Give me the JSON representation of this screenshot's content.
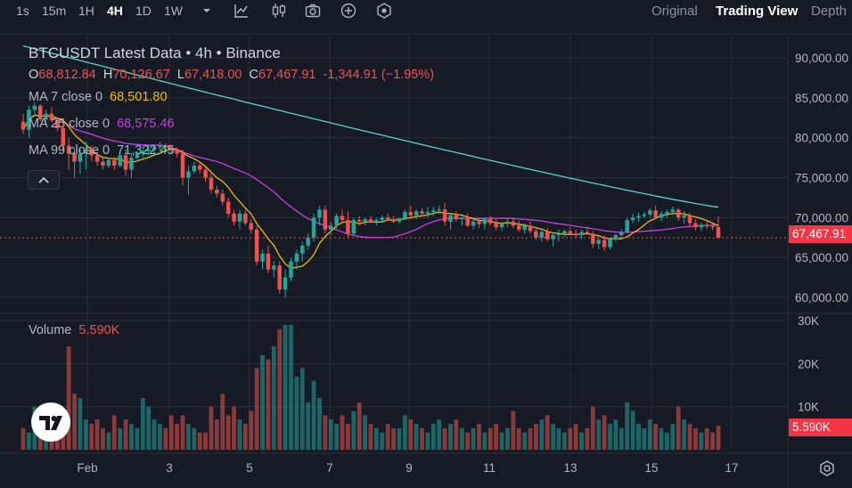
{
  "toolbar": {
    "intervals": [
      {
        "label": "1s",
        "active": false
      },
      {
        "label": "15m",
        "active": false
      },
      {
        "label": "1H",
        "active": false
      },
      {
        "label": "4H",
        "active": true
      },
      {
        "label": "1D",
        "active": false
      },
      {
        "label": "1W",
        "active": false
      }
    ],
    "views": [
      {
        "label": "Original",
        "active": false
      },
      {
        "label": "Trading View",
        "active": true
      },
      {
        "label": "Depth",
        "active": false
      }
    ]
  },
  "legend": {
    "title": "BTCUSDT Latest Data • 4h • Binance",
    "ohlc": {
      "o_label": "O",
      "o_value": "68,812.84",
      "h_label": "H",
      "h_value": "70,126.67",
      "l_label": "L",
      "l_value": "67,418.00",
      "c_label": "C",
      "c_value": "67,467.91",
      "change": "-1,344.91 (−1.95%)"
    },
    "ma": [
      {
        "label": "MA 7 close 0",
        "value": "68,501.80",
        "color": "#f0b90b"
      },
      {
        "label": "MA 25 close 0",
        "value": "68,575.46",
        "color": "#c940e0"
      },
      {
        "label": "MA 99 close 0",
        "value": "71,322.45",
        "color": "#5ed3c6"
      }
    ],
    "volume_label": "Volume",
    "volume_value": "5.590K"
  },
  "price_axis": [
    "90,000.00",
    "85,000.00",
    "80,000.00",
    "75,000.00",
    "70,000.00",
    "65,000.00",
    "60,000.00"
  ],
  "current_price_tag": "67,467.91",
  "volume_axis": [
    "30K",
    "20K",
    "10K"
  ],
  "current_volume_tag": "5.590K",
  "time_axis": [
    "Feb",
    "3",
    "5",
    "7",
    "9",
    "11",
    "13",
    "15",
    "17"
  ],
  "colors": {
    "up": "#26a69a",
    "down": "#ef5350",
    "bg": "#161a25",
    "grid": "#2a2e39"
  },
  "chart_data": {
    "type": "candlestick",
    "title": "BTCUSDT Latest Data • 4h • Binance",
    "interval": "4h",
    "ylim": [
      58000,
      93000
    ],
    "volume_ylim": [
      0,
      30000
    ],
    "x_ticks": [
      "Feb",
      "3",
      "5",
      "7",
      "9",
      "11",
      "13",
      "15",
      "17"
    ],
    "candles": [
      {
        "o": 82000,
        "h": 83000,
        "l": 80500,
        "c": 81000,
        "v": 5000
      },
      {
        "o": 81000,
        "h": 84000,
        "l": 80000,
        "c": 83500,
        "v": 4000
      },
      {
        "o": 83500,
        "h": 84500,
        "l": 83000,
        "c": 84000,
        "v": 10000
      },
      {
        "o": 84000,
        "h": 84200,
        "l": 82000,
        "c": 82300,
        "v": 6000
      },
      {
        "o": 82300,
        "h": 83500,
        "l": 81500,
        "c": 83000,
        "v": 8000
      },
      {
        "o": 83000,
        "h": 83800,
        "l": 82000,
        "c": 82200,
        "v": 5000
      },
      {
        "o": 82200,
        "h": 82500,
        "l": 80800,
        "c": 81200,
        "v": 3000
      },
      {
        "o": 81200,
        "h": 81500,
        "l": 78500,
        "c": 79000,
        "v": 9000
      },
      {
        "o": 79000,
        "h": 80000,
        "l": 76000,
        "c": 78000,
        "v": 24000
      },
      {
        "o": 78000,
        "h": 78500,
        "l": 75000,
        "c": 77000,
        "v": 13000
      },
      {
        "o": 77000,
        "h": 78500,
        "l": 75500,
        "c": 78000,
        "v": 12000
      },
      {
        "o": 78000,
        "h": 79500,
        "l": 76000,
        "c": 78500,
        "v": 7000
      },
      {
        "o": 78500,
        "h": 79000,
        "l": 77000,
        "c": 77800,
        "v": 6000
      },
      {
        "o": 77800,
        "h": 78000,
        "l": 76500,
        "c": 77000,
        "v": 7000
      },
      {
        "o": 77000,
        "h": 77500,
        "l": 76000,
        "c": 76500,
        "v": 5000
      },
      {
        "o": 76500,
        "h": 77500,
        "l": 76200,
        "c": 77200,
        "v": 4000
      },
      {
        "o": 77200,
        "h": 77600,
        "l": 76000,
        "c": 76500,
        "v": 8000
      },
      {
        "o": 76500,
        "h": 78000,
        "l": 76300,
        "c": 77800,
        "v": 5000
      },
      {
        "o": 77800,
        "h": 78500,
        "l": 75200,
        "c": 76000,
        "v": 7000
      },
      {
        "o": 76000,
        "h": 78000,
        "l": 75000,
        "c": 77500,
        "v": 6000
      },
      {
        "o": 77500,
        "h": 78200,
        "l": 77000,
        "c": 78000,
        "v": 5000
      },
      {
        "o": 78000,
        "h": 78800,
        "l": 77500,
        "c": 78300,
        "v": 12000
      },
      {
        "o": 78300,
        "h": 79000,
        "l": 77800,
        "c": 78500,
        "v": 10000
      },
      {
        "o": 78500,
        "h": 79200,
        "l": 78000,
        "c": 78800,
        "v": 7000
      },
      {
        "o": 78800,
        "h": 79500,
        "l": 78300,
        "c": 79000,
        "v": 6000
      },
      {
        "o": 79000,
        "h": 79300,
        "l": 78500,
        "c": 78800,
        "v": 5000
      },
      {
        "o": 78800,
        "h": 79000,
        "l": 78000,
        "c": 78500,
        "v": 8000
      },
      {
        "o": 78500,
        "h": 78800,
        "l": 77500,
        "c": 78000,
        "v": 6000
      },
      {
        "o": 78000,
        "h": 78500,
        "l": 74000,
        "c": 75000,
        "v": 8000
      },
      {
        "o": 75000,
        "h": 76500,
        "l": 72800,
        "c": 75800,
        "v": 6000
      },
      {
        "o": 75800,
        "h": 77000,
        "l": 75500,
        "c": 76500,
        "v": 5000
      },
      {
        "o": 76500,
        "h": 77000,
        "l": 75500,
        "c": 76000,
        "v": 4000
      },
      {
        "o": 76000,
        "h": 76300,
        "l": 74500,
        "c": 75000,
        "v": 4000
      },
      {
        "o": 75000,
        "h": 75500,
        "l": 73000,
        "c": 73500,
        "v": 10000
      },
      {
        "o": 73500,
        "h": 74000,
        "l": 72500,
        "c": 73000,
        "v": 7000
      },
      {
        "o": 73000,
        "h": 73500,
        "l": 71500,
        "c": 72000,
        "v": 13000
      },
      {
        "o": 72000,
        "h": 72500,
        "l": 70000,
        "c": 70500,
        "v": 8000
      },
      {
        "o": 70500,
        "h": 71000,
        "l": 69000,
        "c": 69500,
        "v": 10000
      },
      {
        "o": 69500,
        "h": 71000,
        "l": 68500,
        "c": 70500,
        "v": 7000
      },
      {
        "o": 70500,
        "h": 71000,
        "l": 69000,
        "c": 69300,
        "v": 6000
      },
      {
        "o": 69300,
        "h": 69800,
        "l": 68000,
        "c": 68500,
        "v": 9000
      },
      {
        "o": 68500,
        "h": 69000,
        "l": 64000,
        "c": 64500,
        "v": 19000
      },
      {
        "o": 64500,
        "h": 66000,
        "l": 63500,
        "c": 65500,
        "v": 22000
      },
      {
        "o": 65500,
        "h": 66500,
        "l": 63000,
        "c": 63500,
        "v": 21000
      },
      {
        "o": 63500,
        "h": 64500,
        "l": 62500,
        "c": 64000,
        "v": 24000
      },
      {
        "o": 64000,
        "h": 64500,
        "l": 60500,
        "c": 61000,
        "v": 28000
      },
      {
        "o": 61000,
        "h": 63500,
        "l": 60000,
        "c": 62500,
        "v": 29000
      },
      {
        "o": 62500,
        "h": 65000,
        "l": 62000,
        "c": 64500,
        "v": 29000
      },
      {
        "o": 64500,
        "h": 66000,
        "l": 63500,
        "c": 65500,
        "v": 17000
      },
      {
        "o": 65500,
        "h": 67000,
        "l": 64500,
        "c": 66500,
        "v": 19000
      },
      {
        "o": 66500,
        "h": 68000,
        "l": 66000,
        "c": 67500,
        "v": 11000
      },
      {
        "o": 67500,
        "h": 70500,
        "l": 67000,
        "c": 70000,
        "v": 16000
      },
      {
        "o": 70000,
        "h": 71500,
        "l": 69000,
        "c": 71000,
        "v": 12000
      },
      {
        "o": 71000,
        "h": 71500,
        "l": 68000,
        "c": 68500,
        "v": 8000
      },
      {
        "o": 68500,
        "h": 69500,
        "l": 67800,
        "c": 69000,
        "v": 7000
      },
      {
        "o": 69000,
        "h": 70500,
        "l": 68500,
        "c": 70200,
        "v": 6000
      },
      {
        "o": 70200,
        "h": 71000,
        "l": 69200,
        "c": 69700,
        "v": 8000
      },
      {
        "o": 69700,
        "h": 70800,
        "l": 67500,
        "c": 68000,
        "v": 6000
      },
      {
        "o": 68000,
        "h": 70000,
        "l": 67700,
        "c": 69700,
        "v": 9000
      },
      {
        "o": 69700,
        "h": 70200,
        "l": 69000,
        "c": 69500,
        "v": 11000
      },
      {
        "o": 69500,
        "h": 70000,
        "l": 69000,
        "c": 69800,
        "v": 8000
      },
      {
        "o": 69800,
        "h": 70200,
        "l": 69300,
        "c": 69500,
        "v": 6000
      },
      {
        "o": 69500,
        "h": 70000,
        "l": 69000,
        "c": 69700,
        "v": 5000
      },
      {
        "o": 69700,
        "h": 70300,
        "l": 69500,
        "c": 70000,
        "v": 4000
      },
      {
        "o": 70000,
        "h": 70500,
        "l": 69600,
        "c": 69800,
        "v": 6000
      },
      {
        "o": 69800,
        "h": 70200,
        "l": 69300,
        "c": 69500,
        "v": 5000
      },
      {
        "o": 69500,
        "h": 70000,
        "l": 69200,
        "c": 69900,
        "v": 5000
      },
      {
        "o": 69900,
        "h": 71000,
        "l": 69700,
        "c": 70700,
        "v": 8000
      },
      {
        "o": 70700,
        "h": 71500,
        "l": 70000,
        "c": 70300,
        "v": 7000
      },
      {
        "o": 70300,
        "h": 71000,
        "l": 69800,
        "c": 70800,
        "v": 6000
      },
      {
        "o": 70800,
        "h": 71200,
        "l": 70200,
        "c": 70500,
        "v": 5000
      },
      {
        "o": 70500,
        "h": 71300,
        "l": 70000,
        "c": 70700,
        "v": 4000
      },
      {
        "o": 70700,
        "h": 71400,
        "l": 70200,
        "c": 70900,
        "v": 6000
      },
      {
        "o": 70900,
        "h": 71500,
        "l": 70400,
        "c": 71000,
        "v": 7000
      },
      {
        "o": 71000,
        "h": 71800,
        "l": 69000,
        "c": 69500,
        "v": 5000
      },
      {
        "o": 69500,
        "h": 70500,
        "l": 68500,
        "c": 70300,
        "v": 6000
      },
      {
        "o": 70300,
        "h": 70800,
        "l": 69500,
        "c": 69800,
        "v": 7000
      },
      {
        "o": 69800,
        "h": 70300,
        "l": 69000,
        "c": 70000,
        "v": 5000
      },
      {
        "o": 70000,
        "h": 70500,
        "l": 68800,
        "c": 69000,
        "v": 4000
      },
      {
        "o": 69000,
        "h": 69800,
        "l": 68500,
        "c": 69500,
        "v": 5000
      },
      {
        "o": 69500,
        "h": 70000,
        "l": 68700,
        "c": 69200,
        "v": 6000
      },
      {
        "o": 69200,
        "h": 70000,
        "l": 68500,
        "c": 69800,
        "v": 4000
      },
      {
        "o": 69800,
        "h": 70200,
        "l": 69000,
        "c": 69300,
        "v": 5000
      },
      {
        "o": 69300,
        "h": 69800,
        "l": 68400,
        "c": 68800,
        "v": 6000
      },
      {
        "o": 68800,
        "h": 69500,
        "l": 68300,
        "c": 69300,
        "v": 4000
      },
      {
        "o": 69300,
        "h": 69800,
        "l": 68800,
        "c": 69500,
        "v": 5000
      },
      {
        "o": 69500,
        "h": 70000,
        "l": 68700,
        "c": 69000,
        "v": 9000
      },
      {
        "o": 69000,
        "h": 69600,
        "l": 68200,
        "c": 68500,
        "v": 5000
      },
      {
        "o": 68500,
        "h": 69300,
        "l": 68000,
        "c": 69000,
        "v": 4000
      },
      {
        "o": 69000,
        "h": 69500,
        "l": 68000,
        "c": 68300,
        "v": 5000
      },
      {
        "o": 68300,
        "h": 68800,
        "l": 67200,
        "c": 67500,
        "v": 6000
      },
      {
        "o": 67500,
        "h": 68500,
        "l": 67000,
        "c": 68200,
        "v": 7000
      },
      {
        "o": 68200,
        "h": 68700,
        "l": 67000,
        "c": 67300,
        "v": 8000
      },
      {
        "o": 67300,
        "h": 68000,
        "l": 66400,
        "c": 67800,
        "v": 6000
      },
      {
        "o": 67800,
        "h": 68500,
        "l": 67000,
        "c": 68000,
        "v": 5000
      },
      {
        "o": 68000,
        "h": 68500,
        "l": 67600,
        "c": 68300,
        "v": 4000
      },
      {
        "o": 68300,
        "h": 68800,
        "l": 67800,
        "c": 68000,
        "v": 5000
      },
      {
        "o": 68000,
        "h": 68500,
        "l": 67500,
        "c": 67800,
        "v": 6000
      },
      {
        "o": 67800,
        "h": 68500,
        "l": 67300,
        "c": 68200,
        "v": 4000
      },
      {
        "o": 68200,
        "h": 68700,
        "l": 67800,
        "c": 68000,
        "v": 5000
      },
      {
        "o": 68000,
        "h": 68300,
        "l": 66200,
        "c": 66700,
        "v": 10000
      },
      {
        "o": 66700,
        "h": 67500,
        "l": 66000,
        "c": 67200,
        "v": 7000
      },
      {
        "o": 67200,
        "h": 67800,
        "l": 65800,
        "c": 66300,
        "v": 8000
      },
      {
        "o": 66300,
        "h": 67500,
        "l": 66000,
        "c": 67300,
        "v": 6000
      },
      {
        "o": 67300,
        "h": 68000,
        "l": 67000,
        "c": 67800,
        "v": 7000
      },
      {
        "o": 67800,
        "h": 68500,
        "l": 67500,
        "c": 68200,
        "v": 5000
      },
      {
        "o": 68200,
        "h": 70000,
        "l": 68000,
        "c": 69700,
        "v": 11000
      },
      {
        "o": 69700,
        "h": 70500,
        "l": 69300,
        "c": 70000,
        "v": 9000
      },
      {
        "o": 70000,
        "h": 70600,
        "l": 69500,
        "c": 70200,
        "v": 6000
      },
      {
        "o": 70200,
        "h": 70700,
        "l": 69900,
        "c": 70400,
        "v": 5000
      },
      {
        "o": 70400,
        "h": 71200,
        "l": 70100,
        "c": 70900,
        "v": 7000
      },
      {
        "o": 70900,
        "h": 71500,
        "l": 69800,
        "c": 70000,
        "v": 6000
      },
      {
        "o": 70000,
        "h": 70800,
        "l": 69500,
        "c": 70500,
        "v": 5000
      },
      {
        "o": 70500,
        "h": 71000,
        "l": 70000,
        "c": 70700,
        "v": 4000
      },
      {
        "o": 70700,
        "h": 71400,
        "l": 70300,
        "c": 71000,
        "v": 6000
      },
      {
        "o": 71000,
        "h": 71200,
        "l": 69600,
        "c": 70000,
        "v": 10000
      },
      {
        "o": 70000,
        "h": 70800,
        "l": 69200,
        "c": 70300,
        "v": 7000
      },
      {
        "o": 70300,
        "h": 70600,
        "l": 69000,
        "c": 69300,
        "v": 6000
      },
      {
        "o": 69300,
        "h": 69800,
        "l": 68400,
        "c": 68800,
        "v": 5000
      },
      {
        "o": 68800,
        "h": 69400,
        "l": 68300,
        "c": 69100,
        "v": 4000
      },
      {
        "o": 69100,
        "h": 69600,
        "l": 68600,
        "c": 68900,
        "v": 5000
      },
      {
        "o": 68900,
        "h": 69300,
        "l": 68400,
        "c": 68800,
        "v": 4000
      },
      {
        "o": 68812.84,
        "h": 70126.67,
        "l": 67418.0,
        "c": 67467.91,
        "v": 5590
      }
    ]
  }
}
